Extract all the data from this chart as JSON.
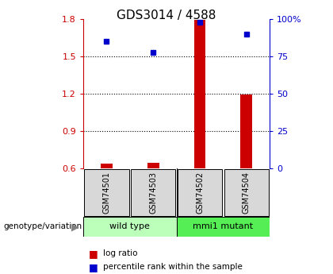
{
  "title": "GDS3014 / 4588",
  "samples": [
    "GSM74501",
    "GSM74503",
    "GSM74502",
    "GSM74504"
  ],
  "log_ratio": [
    0.638,
    0.648,
    1.795,
    1.195
  ],
  "percentile_rank": [
    85,
    78,
    98,
    90
  ],
  "left_ylim": [
    0.6,
    1.8
  ],
  "right_ylim": [
    0,
    100
  ],
  "left_yticks": [
    0.6,
    0.9,
    1.2,
    1.5,
    1.8
  ],
  "right_yticks": [
    0,
    25,
    50,
    75,
    100
  ],
  "right_yticklabels": [
    "0",
    "25",
    "50",
    "75",
    "100%"
  ],
  "groups": [
    {
      "label": "wild type",
      "color": "#bbffbb"
    },
    {
      "label": "mmi1 mutant",
      "color": "#55ee55"
    }
  ],
  "bar_color": "#cc0000",
  "square_color": "#0000cc",
  "bar_width": 0.25,
  "bg_color": "#d8d8d8",
  "plot_bg": "#ffffff",
  "left_axis_color": "#cc0000",
  "right_axis_color": "#0000cc",
  "genotype_label": "genotype/variation",
  "legend_log_ratio": "log ratio",
  "legend_percentile": "percentile rank within the sample"
}
